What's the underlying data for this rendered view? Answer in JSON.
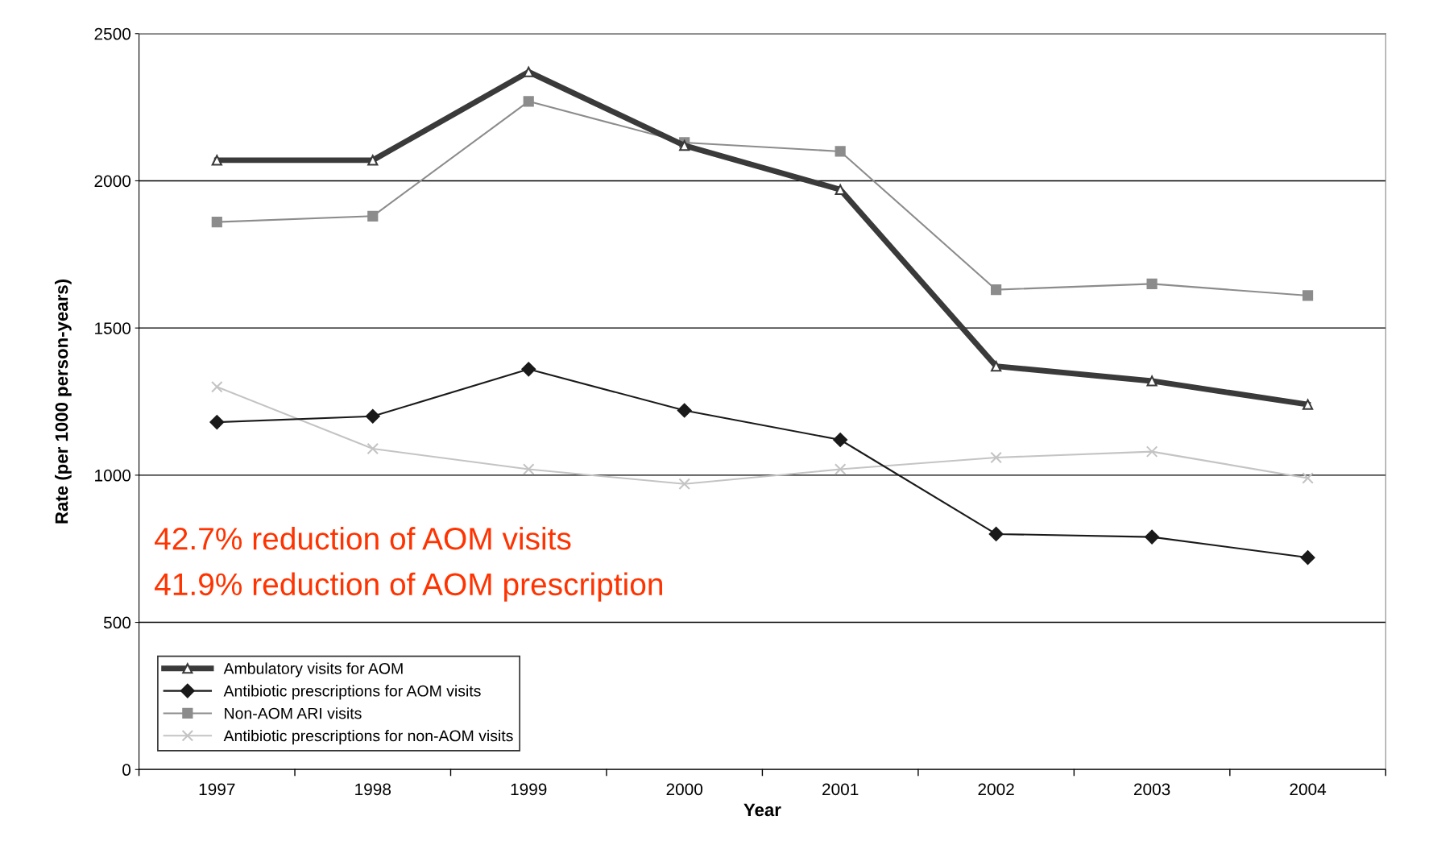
{
  "chart_data": {
    "type": "line",
    "xlabel": "Year",
    "ylabel": "Rate (per 1000 person-years)",
    "categories": [
      "1997",
      "1998",
      "1999",
      "2000",
      "2001",
      "2002",
      "2003",
      "2004"
    ],
    "series": [
      {
        "name": "Ambulatory visits for AOM",
        "color": "#3a3a3a",
        "marker": "triangle",
        "values": [
          2070,
          2070,
          2370,
          2120,
          1970,
          1370,
          1320,
          1240
        ]
      },
      {
        "name": "Antibiotic prescriptions for AOM visits",
        "color": "#1a1a1a",
        "marker": "diamond",
        "values": [
          1180,
          1200,
          1360,
          1220,
          1120,
          800,
          790,
          720
        ]
      },
      {
        "name": "Non-AOM ARI visits",
        "color": "#8c8c8c",
        "marker": "square",
        "values": [
          1860,
          1880,
          2270,
          2130,
          2100,
          1630,
          1650,
          1610
        ]
      },
      {
        "name": "Antibiotic prescriptions for non-AOM visits",
        "color": "#c4c4c4",
        "marker": "cross",
        "values": [
          1300,
          1090,
          1020,
          970,
          1020,
          1060,
          1080,
          990
        ]
      }
    ],
    "ylim": [
      0,
      2500
    ],
    "yticks": [
      0,
      500,
      1000,
      1500,
      2000,
      2500
    ],
    "grid": "y",
    "legend": "bottom left",
    "annotations": [
      "42.7% reduction of AOM visits",
      "41.9% reduction of AOM prescription"
    ]
  }
}
